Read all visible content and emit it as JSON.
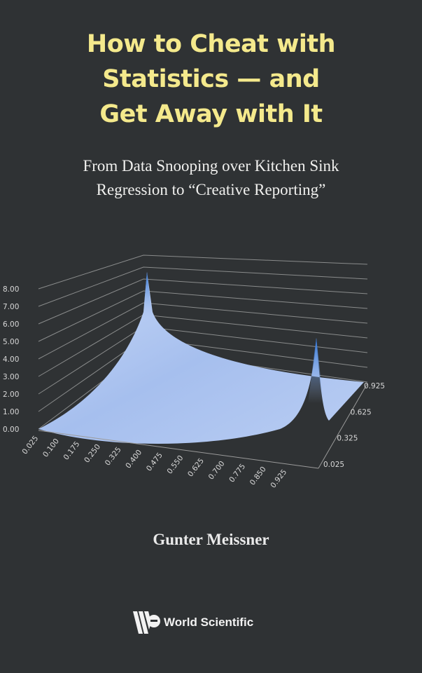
{
  "cover": {
    "title_lines": [
      "How to Cheat with",
      "Statistics — and",
      "Get Away with It"
    ],
    "subtitle_lines": [
      "From Data Snooping over Kitchen Sink",
      "Regression to “Creative Reporting”"
    ],
    "author": "Gunter Meissner",
    "publisher": "World Scientific",
    "publisher_logo": "ws-logo-icon"
  },
  "colors": {
    "background": "#2f3234",
    "title": "#f4e98c",
    "surface": "#a9c2ef",
    "peak": "#2a6fd0"
  },
  "chart_data": {
    "type": "surface",
    "z_ticks": [
      "0.00",
      "1.00",
      "2.00",
      "3.00",
      "4.00",
      "5.00",
      "6.00",
      "7.00",
      "8.00"
    ],
    "x_ticks": [
      "0.025",
      "0.100",
      "0.175",
      "0.250",
      "0.325",
      "0.400",
      "0.475",
      "0.550",
      "0.625",
      "0.700",
      "0.775",
      "0.850",
      "0.925"
    ],
    "y_ticks": [
      "0.025",
      "0.325",
      "0.625",
      "0.925"
    ],
    "zlim": [
      0,
      8
    ],
    "grid": true
  }
}
